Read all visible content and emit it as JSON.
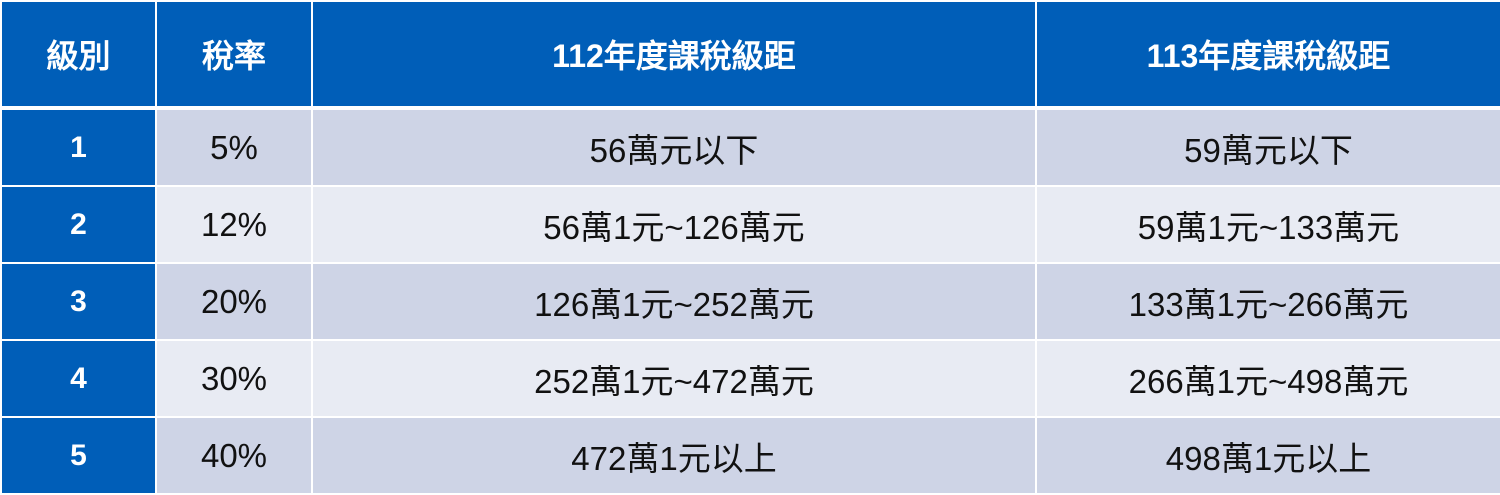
{
  "headers": [
    "級別",
    "稅率",
    "112年度課稅級距",
    "113年度課稅級距"
  ],
  "rows": [
    {
      "level": "1",
      "rate": "5%",
      "y112": "56萬元以下",
      "y113": "59萬元以下"
    },
    {
      "level": "2",
      "rate": "12%",
      "y112": "56萬1元~126萬元",
      "y113": "59萬1元~133萬元"
    },
    {
      "level": "3",
      "rate": "20%",
      "y112": "126萬1元~252萬元",
      "y113": "133萬1元~266萬元"
    },
    {
      "level": "4",
      "rate": "30%",
      "y112": "252萬1元~472萬元",
      "y113": "266萬1元~498萬元"
    },
    {
      "level": "5",
      "rate": "40%",
      "y112": "472萬1元以上",
      "y113": "498萬1元以上"
    }
  ],
  "colors": {
    "header": "#005EB8",
    "row_odd": "#CED4E6",
    "row_even": "#E8EBF3"
  }
}
